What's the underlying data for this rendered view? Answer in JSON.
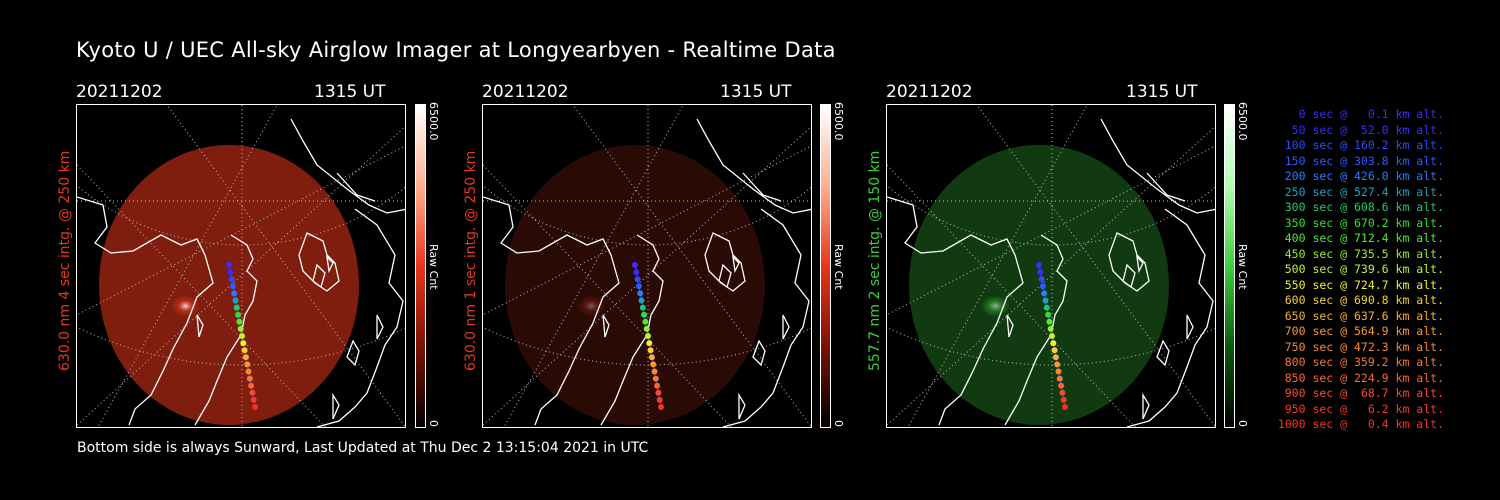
{
  "title": "Kyoto U / UEC All-sky Airglow Imager at Longyearbyen - Realtime Data",
  "footer": "Bottom side is always Sunward, Last Updated at Thu Dec  2 13:15:04 2021 in UTC",
  "panels": [
    {
      "date": "20211202",
      "time": "1315 UT",
      "ylabel": "630.0 nm 4 sec intg. @ 250 km",
      "ylabel_color": "#e8361c",
      "cbar_max": "6500.0",
      "cbar_min": "0",
      "cbar_unit": "Raw Cnt",
      "color": "#e8361c"
    },
    {
      "date": "20211202",
      "time": "1315 UT",
      "ylabel": "630.0 nm 1 sec intg. @ 250 km",
      "ylabel_color": "#e8361c",
      "cbar_max": "6500.0",
      "cbar_min": "0",
      "cbar_unit": "Raw Cnt",
      "color": "#e8361c"
    },
    {
      "date": "20211202",
      "time": "1315 UT",
      "ylabel": "557.7 nm 2 sec intg. @ 150 km",
      "ylabel_color": "#3ccf3c",
      "cbar_max": "6500.0",
      "cbar_min": "0",
      "cbar_unit": "Raw Cnt",
      "color": "#3ccf3c"
    }
  ],
  "legend": [
    {
      "text": "0 sec @   0.1 km alt.",
      "color": "#3a2cff"
    },
    {
      "text": "50 sec @  52.0 km alt.",
      "color": "#3a2cff"
    },
    {
      "text": "100 sec @ 160.2 km alt.",
      "color": "#2a4cff"
    },
    {
      "text": "150 sec @ 303.8 km alt.",
      "color": "#2a5cff"
    },
    {
      "text": "200 sec @ 426.0 km alt.",
      "color": "#2a7cff"
    },
    {
      "text": "250 sec @ 527.4 km alt.",
      "color": "#20a0c0"
    },
    {
      "text": "300 sec @ 608.6 km alt.",
      "color": "#20c870"
    },
    {
      "text": "350 sec @ 670.2 km alt.",
      "color": "#30e030"
    },
    {
      "text": "400 sec @ 712.4 km alt.",
      "color": "#50e830"
    },
    {
      "text": "450 sec @ 735.5 km alt.",
      "color": "#90f030"
    },
    {
      "text": "500 sec @ 739.6 km alt.",
      "color": "#c0f030"
    },
    {
      "text": "550 sec @ 724.7 km alt.",
      "color": "#f0f030"
    },
    {
      "text": "600 sec @ 690.8 km alt.",
      "color": "#f8d030"
    },
    {
      "text": "650 sec @ 637.6 km alt.",
      "color": "#f8b030"
    },
    {
      "text": "700 sec @ 564.9 km alt.",
      "color": "#f89830"
    },
    {
      "text": "750 sec @ 472.3 km alt.",
      "color": "#f88830"
    },
    {
      "text": "800 sec @ 359.2 km alt.",
      "color": "#f87830"
    },
    {
      "text": "850 sec @ 224.9 km alt.",
      "color": "#f86830"
    },
    {
      "text": "900 sec @  68.7 km alt.",
      "color": "#f84830"
    },
    {
      "text": "950 sec @   6.2 km alt.",
      "color": "#f83a28"
    },
    {
      "text": "1000 sec @   0.4 km alt.",
      "color": "#f83020"
    }
  ]
}
